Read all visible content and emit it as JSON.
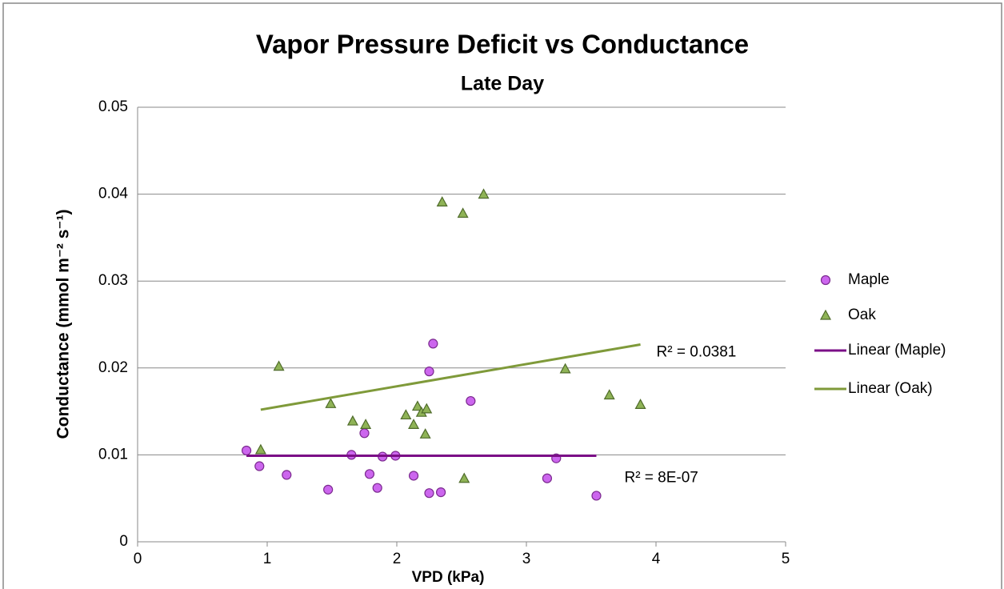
{
  "chart_data": {
    "type": "scatter",
    "title": "Vapor Pressure Deficit vs Conductance",
    "subtitle": "Late Day",
    "x_label": "VPD (kPa)",
    "y_label": "Conductance (mmol m⁻² s⁻¹)",
    "xlim": [
      0,
      5
    ],
    "xticks": [
      0,
      1,
      2,
      3,
      4,
      5
    ],
    "ylim": [
      0,
      0.05
    ],
    "yticks": [
      0,
      0.01,
      0.02,
      0.03,
      0.04,
      0.05
    ],
    "grid": true,
    "legend": "right",
    "series": [
      {
        "name": "Maple",
        "color": "#cc66ee",
        "marker": "circle",
        "x": [
          0.84,
          0.94,
          1.15,
          1.47,
          1.65,
          1.75,
          1.79,
          1.85,
          1.89,
          1.99,
          2.13,
          2.25,
          2.25,
          2.28,
          2.34,
          2.57,
          3.16,
          3.23,
          3.54
        ],
        "values": [
          0.0105,
          0.0087,
          0.0077,
          0.006,
          0.01,
          0.0125,
          0.0078,
          0.0062,
          0.0098,
          0.0099,
          0.0076,
          0.0196,
          0.0056,
          0.0228,
          0.0057,
          0.0162,
          0.0073,
          0.0096,
          0.0053
        ]
      },
      {
        "name": "Oak",
        "color": "#8fb356",
        "marker": "triangle",
        "x": [
          0.95,
          1.09,
          1.49,
          1.66,
          1.76,
          2.07,
          2.13,
          2.16,
          2.19,
          2.23,
          2.22,
          2.35,
          2.51,
          2.52,
          2.67,
          3.3,
          3.64,
          3.88
        ],
        "values": [
          0.0106,
          0.0202,
          0.0159,
          0.0139,
          0.0135,
          0.0146,
          0.0135,
          0.0156,
          0.0149,
          0.0153,
          0.0124,
          0.0391,
          0.0378,
          0.0073,
          0.04,
          0.0199,
          0.0169,
          0.0158
        ]
      }
    ],
    "trendlines": [
      {
        "name": "Linear (Maple)",
        "color": "#7b0f87",
        "x": [
          0.84,
          3.54
        ],
        "values": [
          0.0099,
          0.0099
        ],
        "label": "R² = 8E-07"
      },
      {
        "name": "Linear (Oak)",
        "color": "#7f9a3a",
        "x": [
          0.95,
          3.88
        ],
        "values": [
          0.0152,
          0.0227
        ],
        "label": "R² = 0.0381"
      }
    ]
  }
}
